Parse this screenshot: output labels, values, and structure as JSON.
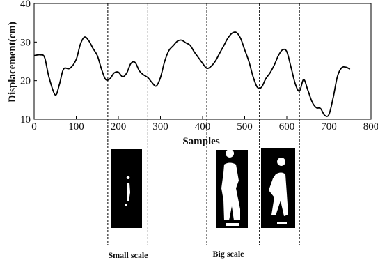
{
  "chart_data": {
    "type": "line",
    "xlabel": "Samples",
    "ylabel": "Displacement(cm)",
    "xlim": [
      0,
      800
    ],
    "ylim": [
      10,
      40
    ],
    "x_ticks": [
      0,
      100,
      200,
      300,
      400,
      500,
      600,
      700,
      800
    ],
    "y_ticks": [
      10,
      20,
      30,
      40
    ],
    "grid": false,
    "series": [
      {
        "color": "#000000",
        "x": [
          0,
          15,
          25,
          35,
          50,
          60,
          70,
          85,
          100,
          110,
          120,
          130,
          140,
          150,
          160,
          170,
          180,
          190,
          200,
          210,
          220,
          230,
          240,
          250,
          260,
          270,
          280,
          290,
          300,
          310,
          320,
          330,
          340,
          350,
          360,
          370,
          380,
          390,
          400,
          410,
          420,
          430,
          440,
          450,
          460,
          470,
          480,
          490,
          500,
          510,
          520,
          530,
          540,
          550,
          560,
          570,
          580,
          590,
          600,
          610,
          620,
          630,
          640,
          650,
          660,
          670,
          680,
          690,
          700,
          710,
          720,
          730,
          740,
          750
        ],
        "values": [
          26.5,
          26.7,
          26.0,
          21.0,
          16.3,
          19.0,
          23.0,
          23.2,
          25.5,
          29.5,
          31.3,
          30.3,
          28.3,
          26.5,
          23.0,
          20.3,
          20.5,
          22.0,
          22.2,
          21.0,
          22.0,
          24.5,
          24.7,
          22.5,
          21.5,
          20.8,
          19.5,
          18.6,
          20.8,
          25.0,
          27.8,
          29.0,
          30.2,
          30.5,
          29.8,
          29.2,
          27.5,
          26.0,
          24.5,
          23.2,
          23.7,
          25.0,
          27.0,
          29.0,
          31.0,
          32.3,
          32.5,
          31.0,
          28.0,
          25.0,
          21.0,
          18.3,
          18.3,
          20.5,
          22.0,
          24.0,
          26.5,
          28.0,
          27.5,
          23.5,
          19.2,
          17.3,
          20.3,
          17.5,
          14.5,
          13.0,
          12.8,
          11.0,
          11.2,
          15.5,
          21.0,
          23.3,
          23.5,
          23.0
        ]
      }
    ],
    "markers": [
      175,
      270,
      410,
      535,
      630
    ],
    "annotations": [
      "Small scale",
      "Big scale"
    ]
  }
}
